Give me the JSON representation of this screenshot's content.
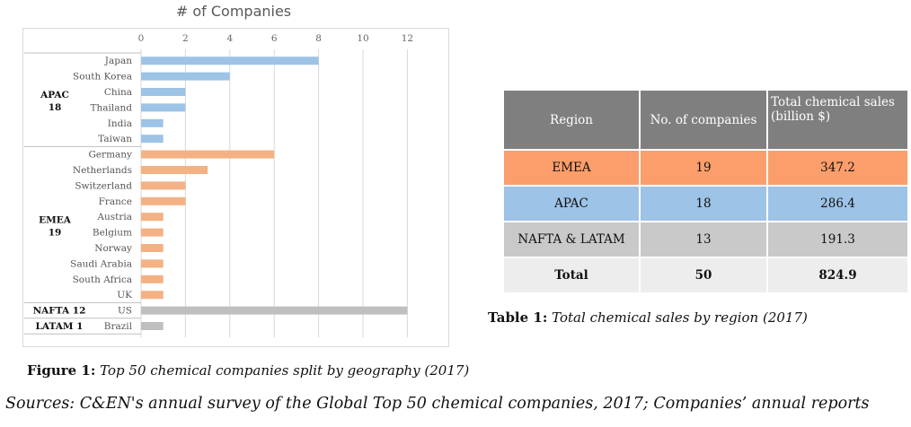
{
  "colors": {
    "apac": "#9dc3e6",
    "emea": "#f4b183",
    "nafta": "#bfbfbf",
    "latam": "#bfbfbf",
    "gridline": "#d9d9d9"
  },
  "chart_data": {
    "type": "bar",
    "orientation": "horizontal",
    "title": "# of Companies",
    "xlim": [
      0,
      12
    ],
    "xticks": [
      0,
      2,
      4,
      6,
      8,
      10,
      12
    ],
    "grid": true,
    "categories": [
      "Japan",
      "South Korea",
      "China",
      "Thailand",
      "India",
      "Taiwan",
      "Germany",
      "Netherlands",
      "Switzerland",
      "France",
      "Austria",
      "Belgium",
      "Norway",
      "Saudi Arabia",
      "South Africa",
      "UK",
      "US",
      "Brazil"
    ],
    "values": [
      8,
      4,
      2,
      2,
      1,
      1,
      6,
      3,
      2,
      2,
      1,
      1,
      1,
      1,
      1,
      1,
      12,
      1
    ],
    "bar_groups": [
      "apac",
      "apac",
      "apac",
      "apac",
      "apac",
      "apac",
      "emea",
      "emea",
      "emea",
      "emea",
      "emea",
      "emea",
      "emea",
      "emea",
      "emea",
      "emea",
      "nafta",
      "latam"
    ],
    "groups": [
      {
        "key": "apac",
        "name": "APAC",
        "count": "18",
        "first": 0,
        "last": 5
      },
      {
        "key": "emea",
        "name": "EMEA",
        "count": "19",
        "first": 6,
        "last": 15
      },
      {
        "key": "nafta",
        "name": "NAFTA 12",
        "first": 16,
        "last": 16
      },
      {
        "key": "latam",
        "name": "LATAM 1",
        "first": 17,
        "last": 17
      }
    ]
  },
  "figure_caption": {
    "label": "Figure 1:",
    "text": "Top 50 chemical companies split by geography (2017)"
  },
  "table": {
    "headers": [
      "Region",
      "No. of companies",
      "Total chemical sales (billion $)"
    ],
    "rows": [
      [
        "EMEA",
        "19",
        "347.2"
      ],
      [
        "APAC",
        "18",
        "286.4"
      ],
      [
        "NAFTA & LATAM",
        "13",
        "191.3"
      ],
      [
        "Total",
        "50",
        "824.9"
      ]
    ]
  },
  "table_caption": {
    "label": "Table 1:",
    "text": "Total chemical sales by region (2017)"
  },
  "sources": "Sources: C&EN's annual survey of the Global Top 50 chemical companies, 2017; Companies’ annual reports"
}
